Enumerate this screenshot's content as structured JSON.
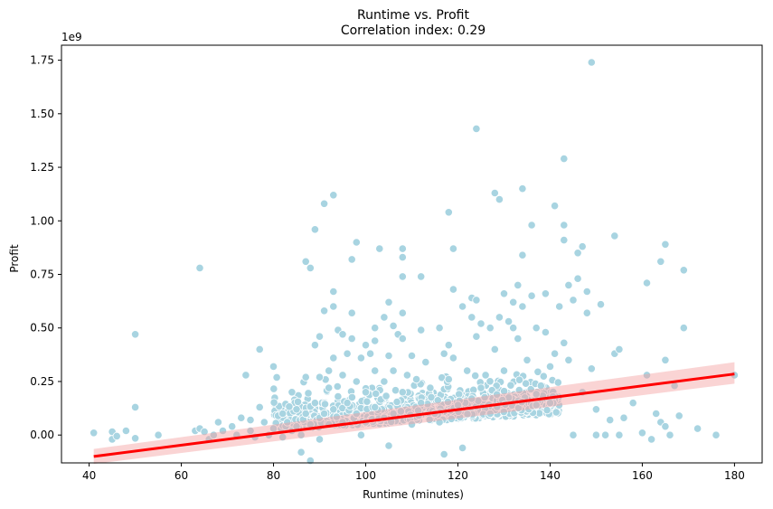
{
  "chart_data": {
    "type": "scatter",
    "title": "Runtime vs. Profit",
    "subtitle": "Correlation index: 0.29",
    "xlabel": "Runtime (minutes)",
    "ylabel": "Profit",
    "y_offset_label": "1e9",
    "xlim": [
      34,
      186
    ],
    "ylim": [
      -0.13,
      1.82
    ],
    "x_ticks": [
      40,
      60,
      80,
      100,
      120,
      140,
      160,
      180
    ],
    "x_tick_labels": [
      "40",
      "60",
      "80",
      "100",
      "120",
      "140",
      "160",
      "180"
    ],
    "y_ticks": [
      0.0,
      0.25,
      0.5,
      0.75,
      1.0,
      1.25,
      1.5,
      1.75
    ],
    "y_tick_labels": [
      "0.00",
      "0.25",
      "0.50",
      "0.75",
      "1.00",
      "1.25",
      "1.50",
      "1.75"
    ],
    "grid": false,
    "colors": {
      "points": "#a8d4e1",
      "point_edge": "#ffffff",
      "regression_line": "#ff0000",
      "confidence_band": "#f4a0a0"
    },
    "regression": {
      "x": [
        41,
        180
      ],
      "y": [
        -0.1,
        0.285
      ],
      "ci_lower": [
        -0.135,
        0.24
      ],
      "ci_upper": [
        -0.065,
        0.34
      ]
    },
    "points": [
      [
        41,
        0.01
      ],
      [
        45,
        0.015
      ],
      [
        45,
        -0.02
      ],
      [
        46,
        -0.005
      ],
      [
        48,
        0.02
      ],
      [
        50,
        0.47
      ],
      [
        50,
        0.13
      ],
      [
        50,
        -0.015
      ],
      [
        55,
        0.0
      ],
      [
        63,
        0.02
      ],
      [
        64,
        0.78
      ],
      [
        64,
        0.03
      ],
      [
        65,
        0.015
      ],
      [
        66,
        -0.02
      ],
      [
        67,
        0.0
      ],
      [
        68,
        0.06
      ],
      [
        69,
        0.02
      ],
      [
        71,
        0.04
      ],
      [
        72,
        0.0
      ],
      [
        73,
        0.08
      ],
      [
        74,
        0.28
      ],
      [
        75,
        0.07
      ],
      [
        75,
        0.02
      ],
      [
        76,
        -0.01
      ],
      [
        77,
        0.4
      ],
      [
        77,
        0.13
      ],
      [
        78,
        0.06
      ],
      [
        79,
        0.0
      ],
      [
        80,
        0.32
      ],
      [
        80,
        0.03
      ],
      [
        81,
        0.09
      ],
      [
        82,
        0.1
      ],
      [
        82,
        -0.01
      ],
      [
        83,
        0.06
      ],
      [
        84,
        0.02
      ],
      [
        84,
        0.2
      ],
      [
        85,
        0.12
      ],
      [
        85,
        0.04
      ],
      [
        86,
        -0.08
      ],
      [
        86,
        0.0
      ],
      [
        87,
        0.81
      ],
      [
        87,
        0.27
      ],
      [
        87,
        0.1
      ],
      [
        88,
        0.78
      ],
      [
        88,
        0.05
      ],
      [
        88,
        -0.12
      ],
      [
        89,
        0.96
      ],
      [
        89,
        0.42
      ],
      [
        89,
        0.15
      ],
      [
        90,
        0.46
      ],
      [
        90,
        0.27
      ],
      [
        90,
        0.08
      ],
      [
        90,
        -0.02
      ],
      [
        91,
        1.08
      ],
      [
        91,
        0.58
      ],
      [
        91,
        0.1
      ],
      [
        92,
        0.3
      ],
      [
        92,
        0.05
      ],
      [
        92,
        0.22
      ],
      [
        93,
        1.12
      ],
      [
        93,
        0.67
      ],
      [
        93,
        0.6
      ],
      [
        93,
        0.36
      ],
      [
        93,
        0.12
      ],
      [
        94,
        0.49
      ],
      [
        94,
        0.18
      ],
      [
        95,
        0.28
      ],
      [
        95,
        0.47
      ],
      [
        95,
        0.06
      ],
      [
        96,
        0.38
      ],
      [
        96,
        0.15
      ],
      [
        97,
        0.82
      ],
      [
        97,
        0.57
      ],
      [
        97,
        0.45
      ],
      [
        98,
        0.9
      ],
      [
        98,
        0.25
      ],
      [
        98,
        0.1
      ],
      [
        99,
        0.36
      ],
      [
        99,
        0.0
      ],
      [
        100,
        0.42
      ],
      [
        100,
        0.2
      ],
      [
        100,
        0.06
      ],
      [
        101,
        0.38
      ],
      [
        102,
        0.5
      ],
      [
        102,
        0.44
      ],
      [
        102,
        0.3
      ],
      [
        102,
        0.13
      ],
      [
        103,
        0.87
      ],
      [
        104,
        0.55
      ],
      [
        104,
        0.25
      ],
      [
        104,
        0.08
      ],
      [
        105,
        0.62
      ],
      [
        105,
        0.37
      ],
      [
        105,
        -0.05
      ],
      [
        106,
        0.51
      ],
      [
        106,
        0.3
      ],
      [
        106,
        0.1
      ],
      [
        107,
        0.47
      ],
      [
        108,
        0.87
      ],
      [
        108,
        0.83
      ],
      [
        108,
        0.74
      ],
      [
        108,
        0.57
      ],
      [
        108,
        0.45
      ],
      [
        108,
        0.2
      ],
      [
        109,
        0.28
      ],
      [
        110,
        0.37
      ],
      [
        110,
        0.05
      ],
      [
        111,
        0.26
      ],
      [
        112,
        0.74
      ],
      [
        112,
        0.49
      ],
      [
        112,
        0.15
      ],
      [
        113,
        0.34
      ],
      [
        114,
        0.22
      ],
      [
        115,
        0.1
      ],
      [
        116,
        0.5
      ],
      [
        116,
        0.06
      ],
      [
        117,
        0.38
      ],
      [
        117,
        -0.09
      ],
      [
        118,
        1.04
      ],
      [
        118,
        0.42
      ],
      [
        118,
        0.26
      ],
      [
        119,
        0.87
      ],
      [
        119,
        0.68
      ],
      [
        119,
        0.36
      ],
      [
        120,
        0.14
      ],
      [
        121,
        0.6
      ],
      [
        121,
        -0.06
      ],
      [
        122,
        0.3
      ],
      [
        123,
        0.64
      ],
      [
        123,
        0.55
      ],
      [
        123,
        0.17
      ],
      [
        124,
        1.43
      ],
      [
        124,
        0.63
      ],
      [
        124,
        0.46
      ],
      [
        125,
        0.52
      ],
      [
        125,
        0.22
      ],
      [
        126,
        0.28
      ],
      [
        127,
        0.5
      ],
      [
        127,
        0.1
      ],
      [
        128,
        1.13
      ],
      [
        128,
        0.4
      ],
      [
        129,
        1.1
      ],
      [
        129,
        0.55
      ],
      [
        130,
        0.66
      ],
      [
        130,
        0.3
      ],
      [
        131,
        0.53
      ],
      [
        132,
        0.5
      ],
      [
        132,
        0.62
      ],
      [
        133,
        0.7
      ],
      [
        133,
        0.45
      ],
      [
        134,
        1.15
      ],
      [
        134,
        0.84
      ],
      [
        134,
        0.6
      ],
      [
        135,
        0.35
      ],
      [
        136,
        0.98
      ],
      [
        136,
        0.65
      ],
      [
        137,
        0.5
      ],
      [
        137,
        0.14
      ],
      [
        138,
        0.23
      ],
      [
        139,
        0.66
      ],
      [
        139,
        0.48
      ],
      [
        140,
        0.32
      ],
      [
        140,
        0.15
      ],
      [
        141,
        1.07
      ],
      [
        141,
        0.38
      ],
      [
        142,
        0.6
      ],
      [
        143,
        1.29
      ],
      [
        143,
        0.98
      ],
      [
        143,
        0.91
      ],
      [
        143,
        0.43
      ],
      [
        144,
        0.7
      ],
      [
        144,
        0.35
      ],
      [
        145,
        0.63
      ],
      [
        145,
        0.0
      ],
      [
        146,
        0.85
      ],
      [
        146,
        0.73
      ],
      [
        147,
        0.2
      ],
      [
        147,
        0.88
      ],
      [
        148,
        0.67
      ],
      [
        148,
        0.57
      ],
      [
        149,
        1.74
      ],
      [
        149,
        0.31
      ],
      [
        150,
        0.12
      ],
      [
        150,
        0.0
      ],
      [
        151,
        0.61
      ],
      [
        152,
        0.0
      ],
      [
        153,
        0.07
      ],
      [
        154,
        0.93
      ],
      [
        154,
        0.38
      ],
      [
        155,
        0.0
      ],
      [
        155,
        0.4
      ],
      [
        156,
        0.08
      ],
      [
        158,
        0.15
      ],
      [
        160,
        0.01
      ],
      [
        161,
        0.71
      ],
      [
        161,
        0.28
      ],
      [
        162,
        -0.02
      ],
      [
        163,
        0.1
      ],
      [
        164,
        0.81
      ],
      [
        164,
        0.06
      ],
      [
        165,
        0.89
      ],
      [
        165,
        0.35
      ],
      [
        165,
        0.04
      ],
      [
        166,
        0.0
      ],
      [
        167,
        0.23
      ],
      [
        168,
        0.09
      ],
      [
        169,
        0.77
      ],
      [
        169,
        0.5
      ],
      [
        172,
        0.03
      ],
      [
        176,
        0.0
      ],
      [
        180,
        0.28
      ]
    ],
    "dense_cluster": {
      "count": 900,
      "x_range": [
        80,
        142
      ],
      "y_center": 0.05,
      "y_spread": 0.14
    }
  }
}
